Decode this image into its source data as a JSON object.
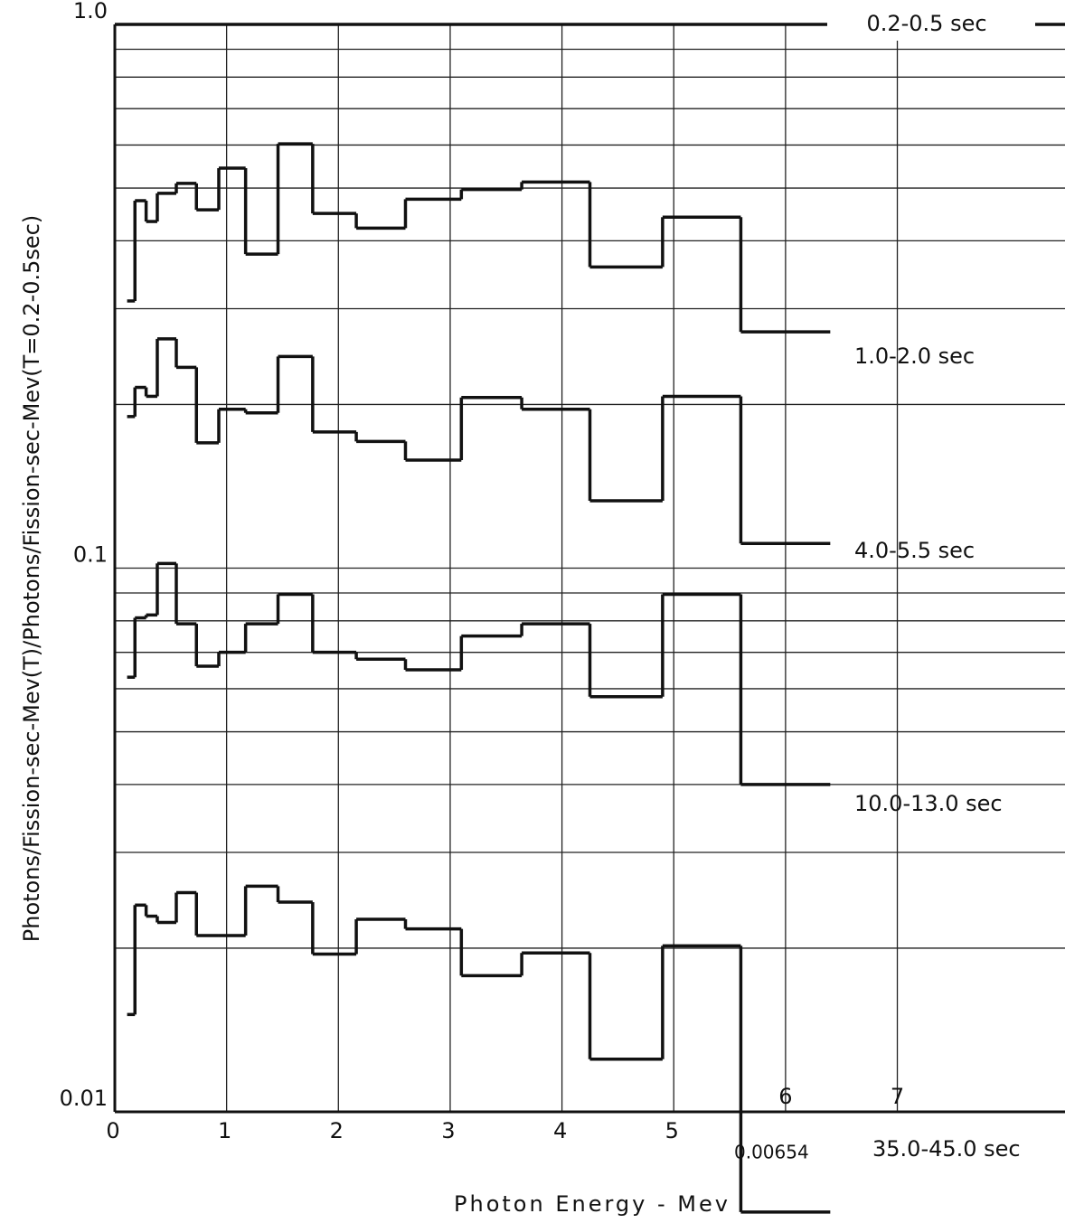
{
  "chart_data": {
    "type": "step",
    "xlabel": "Photon  Energy - Mev",
    "ylabel": "Photons/Fission-sec-Mev(T)/Photons/Fission-sec-Mev(T=0.2-0.5sec)",
    "xlim": [
      0,
      8.5
    ],
    "ylim": [
      0.01,
      1
    ],
    "log_y": true,
    "xticks": [
      0,
      1,
      2,
      3,
      4,
      5,
      6,
      7
    ],
    "yticks": [
      {
        "value": 1,
        "label": "1.0"
      },
      0.1,
      0.01
    ],
    "yminor": [
      0.02,
      0.03,
      0.04,
      0.05,
      0.06,
      0.07,
      0.08,
      0.09,
      0.2,
      0.3,
      0.4,
      0.5,
      0.6,
      0.7,
      0.8,
      0.9
    ],
    "grid": true,
    "color": "#111111",
    "series": [
      {
        "name": "0.2-0.5 sec",
        "bins": [
          0,
          8.5
        ],
        "values": [
          1
        ]
      },
      {
        "name": "1.0-2.0 sec",
        "bins": [
          0.11,
          0.18,
          0.28,
          0.38,
          0.55,
          0.73,
          0.93,
          1.17,
          1.46,
          1.77,
          2.16,
          2.6,
          3.1,
          3.64,
          4.25,
          4.9,
          5.6,
          6.4
        ],
        "values": [
          0.31,
          0.474,
          0.434,
          0.489,
          0.51,
          0.456,
          0.544,
          0.378,
          0.603,
          0.449,
          0.422,
          0.477,
          0.497,
          0.513,
          0.358,
          0.442,
          0.272
        ]
      },
      {
        "name": "4.0-5.5 sec",
        "bins": [
          0.11,
          0.18,
          0.28,
          0.38,
          0.55,
          0.73,
          0.93,
          1.17,
          1.46,
          1.77,
          2.16,
          2.6,
          3.1,
          3.64,
          4.25,
          4.9,
          5.6,
          6.4
        ],
        "values": [
          0.19,
          0.215,
          0.207,
          0.264,
          0.234,
          0.17,
          0.196,
          0.193,
          0.245,
          0.178,
          0.171,
          0.158,
          0.206,
          0.196,
          0.133,
          0.207,
          0.111
        ]
      },
      {
        "name": "10.0-13.0 sec",
        "bins": [
          0.11,
          0.18,
          0.28,
          0.38,
          0.55,
          0.73,
          0.93,
          1.17,
          1.46,
          1.77,
          2.16,
          2.6,
          3.1,
          3.64,
          4.25,
          4.9,
          5.6,
          6.4
        ],
        "values": [
          0.063,
          0.081,
          0.082,
          0.102,
          0.079,
          0.066,
          0.07,
          0.079,
          0.0895,
          0.07,
          0.068,
          0.065,
          0.075,
          0.079,
          0.058,
          0.0895,
          0.04
        ]
      },
      {
        "name": "35.0-45.0 sec",
        "bins": [
          0.11,
          0.18,
          0.28,
          0.38,
          0.55,
          0.73,
          0.93,
          1.17,
          1.46,
          1.77,
          2.16,
          2.6,
          3.1,
          3.64,
          4.25,
          4.9,
          5.6,
          6.4
        ],
        "values": [
          0.0151,
          0.024,
          0.0229,
          0.0223,
          0.0253,
          0.0211,
          0.0211,
          0.026,
          0.0243,
          0.0195,
          0.0226,
          0.0217,
          0.0178,
          0.0196,
          0.0125,
          0.0202,
          0.00654
        ]
      }
    ]
  }
}
